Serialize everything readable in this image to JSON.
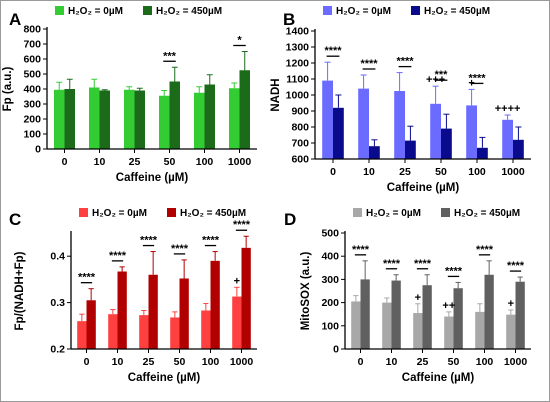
{
  "chart_data": [
    {
      "type": "bar",
      "panel": "A",
      "categories": [
        "0",
        "10",
        "25",
        "50",
        "100",
        "1000"
      ],
      "xlabel": "Caffeine (µM)",
      "ylabel": "Fp (a.u.)",
      "ylim": [
        0,
        800
      ],
      "yticks": [
        0,
        100,
        200,
        300,
        400,
        500,
        600,
        700,
        800
      ],
      "colors": [
        "#33cc33",
        "#1b6b1b"
      ],
      "series": [
        {
          "name": "H₂O₂ = 0µM",
          "values": [
            395,
            410,
            395,
            355,
            375,
            405
          ],
          "errors": [
            50,
            55,
            20,
            35,
            40,
            35
          ]
        },
        {
          "name": "H₂O₂ = 450µM",
          "values": [
            400,
            390,
            390,
            450,
            430,
            525
          ],
          "errors": [
            65,
            5,
            15,
            95,
            65,
            125
          ]
        }
      ],
      "annotations": [
        {
          "index": 3,
          "text": "***",
          "type": "bracket"
        },
        {
          "index": 5,
          "text": "*",
          "type": "bracket"
        }
      ]
    },
    {
      "type": "bar",
      "panel": "B",
      "categories": [
        "0",
        "10",
        "25",
        "50",
        "100",
        "1000"
      ],
      "xlabel": "Caffeine (µM)",
      "ylabel": "NADH",
      "ylim": [
        600,
        1400
      ],
      "yticks": [
        600,
        700,
        800,
        900,
        1000,
        1100,
        1200,
        1300,
        1400
      ],
      "colors": [
        "#6b6bff",
        "#0a0a8c"
      ],
      "series": [
        {
          "name": "H₂O₂ = 0µM",
          "values": [
            1090,
            1040,
            1025,
            945,
            935,
            845
          ],
          "errors": [
            115,
            85,
            115,
            110,
            100,
            30
          ]
        },
        {
          "name": "H₂O₂ = 450µM",
          "values": [
            920,
            680,
            715,
            790,
            670,
            720
          ],
          "errors": [
            80,
            40,
            90,
            90,
            65,
            80
          ]
        }
      ],
      "annotations": [
        {
          "index": 0,
          "text": "****",
          "type": "bracket"
        },
        {
          "index": 1,
          "text": "****",
          "type": "bracket"
        },
        {
          "index": 2,
          "text": "****",
          "type": "bracket"
        },
        {
          "index": 3,
          "text": "***",
          "type": "bracket"
        },
        {
          "index": 4,
          "text": "****",
          "type": "bracket"
        },
        {
          "index": 3,
          "text": "+++",
          "type": "over0"
        },
        {
          "index": 4,
          "text": "+",
          "type": "over0"
        },
        {
          "index": 5,
          "text": "++++",
          "type": "over0"
        }
      ]
    },
    {
      "type": "bar",
      "panel": "C",
      "categories": [
        "0",
        "10",
        "25",
        "50",
        "100",
        "1000"
      ],
      "xlabel": "Caffeine (µM)",
      "ylabel": "Fp/(NADH+Fp)",
      "ylim": [
        0.2,
        0.45
      ],
      "yticks": [
        0.2,
        0.3,
        0.4
      ],
      "colors": [
        "#ff4040",
        "#b00000"
      ],
      "series": [
        {
          "name": "H₂O₂ = 0µM",
          "values": [
            0.26,
            0.275,
            0.273,
            0.268,
            0.283,
            0.313
          ],
          "errors": [
            0.015,
            0.01,
            0.01,
            0.012,
            0.015,
            0.02
          ]
        },
        {
          "name": "H₂O₂ = 450µM",
          "values": [
            0.305,
            0.367,
            0.36,
            0.352,
            0.39,
            0.418
          ],
          "errors": [
            0.025,
            0.01,
            0.05,
            0.04,
            0.02,
            0.025
          ]
        }
      ],
      "annotations": [
        {
          "index": 0,
          "text": "****",
          "type": "bracket"
        },
        {
          "index": 1,
          "text": "****",
          "type": "bracket"
        },
        {
          "index": 2,
          "text": "****",
          "type": "bracket"
        },
        {
          "index": 3,
          "text": "****",
          "type": "bracket"
        },
        {
          "index": 4,
          "text": "****",
          "type": "bracket"
        },
        {
          "index": 5,
          "text": "****",
          "type": "bracket"
        },
        {
          "index": 5,
          "text": "+",
          "type": "over0"
        }
      ]
    },
    {
      "type": "bar",
      "panel": "D",
      "categories": [
        "0",
        "10",
        "25",
        "50",
        "100",
        "1000"
      ],
      "xlabel": "Caffeine (µM)",
      "ylabel": "MitoSOX (a.u.)",
      "ylim": [
        0,
        500
      ],
      "yticks": [
        0,
        100,
        200,
        300,
        400,
        500
      ],
      "colors": [
        "#a8a8a8",
        "#606060"
      ],
      "series": [
        {
          "name": "H₂O₂ = 0µM",
          "values": [
            205,
            200,
            155,
            140,
            160,
            148
          ],
          "errors": [
            25,
            20,
            40,
            20,
            35,
            20
          ]
        },
        {
          "name": "H₂O₂ = 450µM",
          "values": [
            300,
            295,
            275,
            262,
            320,
            290
          ],
          "errors": [
            80,
            25,
            45,
            25,
            60,
            20
          ]
        }
      ],
      "annotations": [
        {
          "index": 0,
          "text": "****",
          "type": "bracket"
        },
        {
          "index": 1,
          "text": "****",
          "type": "bracket"
        },
        {
          "index": 2,
          "text": "****",
          "type": "bracket"
        },
        {
          "index": 3,
          "text": "****",
          "type": "bracket"
        },
        {
          "index": 4,
          "text": "****",
          "type": "bracket"
        },
        {
          "index": 5,
          "text": "****",
          "type": "bracket"
        },
        {
          "index": 2,
          "text": "+",
          "type": "over0"
        },
        {
          "index": 3,
          "text": "++",
          "type": "over0"
        },
        {
          "index": 5,
          "text": "+",
          "type": "over0"
        }
      ]
    }
  ]
}
